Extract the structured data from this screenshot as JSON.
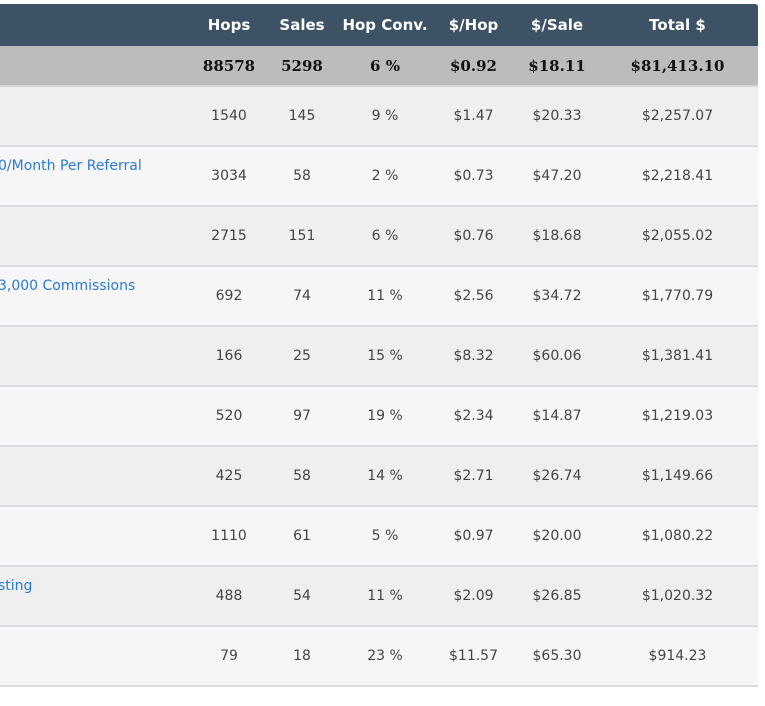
{
  "columns": {
    "name": "",
    "hops": "Hops",
    "sales": "Sales",
    "hop_conv": "Hop Conv.",
    "per_hop": "$/Hop",
    "per_sale": "$/Sale",
    "total": "Total $"
  },
  "totals": {
    "hops": "88578",
    "sales": "5298",
    "hop_conv": "6 %",
    "per_hop": "$0.92",
    "per_sale": "$18.11",
    "total": "$81,413.10"
  },
  "rows": [
    {
      "name": "",
      "hops": "1540",
      "sales": "145",
      "hop_conv": "9 %",
      "per_hop": "$1.47",
      "per_sale": "$20.33",
      "total": "$2,257.07"
    },
    {
      "name": "0/Month Per Referral",
      "hops": "3034",
      "sales": "58",
      "hop_conv": "2 %",
      "per_hop": "$0.73",
      "per_sale": "$47.20",
      "total": "$2,218.41"
    },
    {
      "name": "",
      "hops": "2715",
      "sales": "151",
      "hop_conv": "6 %",
      "per_hop": "$0.76",
      "per_sale": "$18.68",
      "total": "$2,055.02"
    },
    {
      "name": "3,000 Commissions",
      "hops": "692",
      "sales": "74",
      "hop_conv": "11 %",
      "per_hop": "$2.56",
      "per_sale": "$34.72",
      "total": "$1,770.79"
    },
    {
      "name": "",
      "hops": "166",
      "sales": "25",
      "hop_conv": "15 %",
      "per_hop": "$8.32",
      "per_sale": "$60.06",
      "total": "$1,381.41"
    },
    {
      "name": "",
      "hops": "520",
      "sales": "97",
      "hop_conv": "19 %",
      "per_hop": "$2.34",
      "per_sale": "$14.87",
      "total": "$1,219.03"
    },
    {
      "name": "",
      "hops": "425",
      "sales": "58",
      "hop_conv": "14 %",
      "per_hop": "$2.71",
      "per_sale": "$26.74",
      "total": "$1,149.66"
    },
    {
      "name": "",
      "hops": "1110",
      "sales": "61",
      "hop_conv": "5 %",
      "per_hop": "$0.97",
      "per_sale": "$20.00",
      "total": "$1,080.22"
    },
    {
      "name": "sting",
      "hops": "488",
      "sales": "54",
      "hop_conv": "11 %",
      "per_hop": "$2.09",
      "per_sale": "$26.85",
      "total": "$1,020.32"
    },
    {
      "name": "",
      "hops": "79",
      "sales": "18",
      "hop_conv": "23 %",
      "per_hop": "$11.57",
      "per_sale": "$65.30",
      "total": "$914.23"
    }
  ]
}
